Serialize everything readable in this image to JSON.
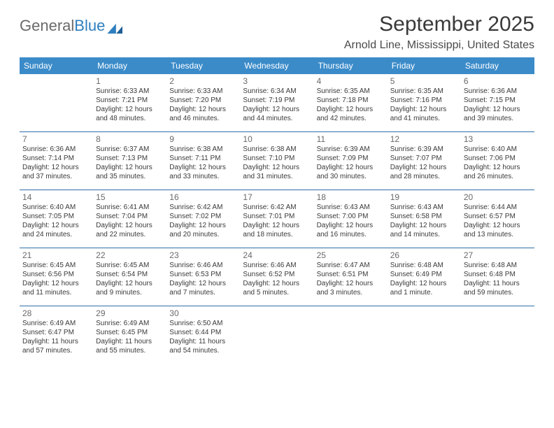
{
  "brand": {
    "part1": "General",
    "part2": "Blue"
  },
  "title": "September 2025",
  "location": "Arnold Line, Mississippi, United States",
  "colors": {
    "header_bg": "#3b8bc9",
    "header_text": "#ffffff",
    "row_divider": "#2f6fa8",
    "text": "#3a3a3a",
    "muted": "#6a6a6a",
    "logo_blue": "#2f7fbf",
    "page_bg": "#ffffff"
  },
  "typography": {
    "title_fontsize": 30,
    "location_fontsize": 16,
    "dow_fontsize": 12,
    "daynum_fontsize": 12,
    "body_fontsize": 10
  },
  "days_of_week": [
    "Sunday",
    "Monday",
    "Tuesday",
    "Wednesday",
    "Thursday",
    "Friday",
    "Saturday"
  ],
  "weeks": [
    [
      null,
      {
        "num": "1",
        "sunrise": "Sunrise: 6:33 AM",
        "sunset": "Sunset: 7:21 PM",
        "daylight1": "Daylight: 12 hours",
        "daylight2": "and 48 minutes."
      },
      {
        "num": "2",
        "sunrise": "Sunrise: 6:33 AM",
        "sunset": "Sunset: 7:20 PM",
        "daylight1": "Daylight: 12 hours",
        "daylight2": "and 46 minutes."
      },
      {
        "num": "3",
        "sunrise": "Sunrise: 6:34 AM",
        "sunset": "Sunset: 7:19 PM",
        "daylight1": "Daylight: 12 hours",
        "daylight2": "and 44 minutes."
      },
      {
        "num": "4",
        "sunrise": "Sunrise: 6:35 AM",
        "sunset": "Sunset: 7:18 PM",
        "daylight1": "Daylight: 12 hours",
        "daylight2": "and 42 minutes."
      },
      {
        "num": "5",
        "sunrise": "Sunrise: 6:35 AM",
        "sunset": "Sunset: 7:16 PM",
        "daylight1": "Daylight: 12 hours",
        "daylight2": "and 41 minutes."
      },
      {
        "num": "6",
        "sunrise": "Sunrise: 6:36 AM",
        "sunset": "Sunset: 7:15 PM",
        "daylight1": "Daylight: 12 hours",
        "daylight2": "and 39 minutes."
      }
    ],
    [
      {
        "num": "7",
        "sunrise": "Sunrise: 6:36 AM",
        "sunset": "Sunset: 7:14 PM",
        "daylight1": "Daylight: 12 hours",
        "daylight2": "and 37 minutes."
      },
      {
        "num": "8",
        "sunrise": "Sunrise: 6:37 AM",
        "sunset": "Sunset: 7:13 PM",
        "daylight1": "Daylight: 12 hours",
        "daylight2": "and 35 minutes."
      },
      {
        "num": "9",
        "sunrise": "Sunrise: 6:38 AM",
        "sunset": "Sunset: 7:11 PM",
        "daylight1": "Daylight: 12 hours",
        "daylight2": "and 33 minutes."
      },
      {
        "num": "10",
        "sunrise": "Sunrise: 6:38 AM",
        "sunset": "Sunset: 7:10 PM",
        "daylight1": "Daylight: 12 hours",
        "daylight2": "and 31 minutes."
      },
      {
        "num": "11",
        "sunrise": "Sunrise: 6:39 AM",
        "sunset": "Sunset: 7:09 PM",
        "daylight1": "Daylight: 12 hours",
        "daylight2": "and 30 minutes."
      },
      {
        "num": "12",
        "sunrise": "Sunrise: 6:39 AM",
        "sunset": "Sunset: 7:07 PM",
        "daylight1": "Daylight: 12 hours",
        "daylight2": "and 28 minutes."
      },
      {
        "num": "13",
        "sunrise": "Sunrise: 6:40 AM",
        "sunset": "Sunset: 7:06 PM",
        "daylight1": "Daylight: 12 hours",
        "daylight2": "and 26 minutes."
      }
    ],
    [
      {
        "num": "14",
        "sunrise": "Sunrise: 6:40 AM",
        "sunset": "Sunset: 7:05 PM",
        "daylight1": "Daylight: 12 hours",
        "daylight2": "and 24 minutes."
      },
      {
        "num": "15",
        "sunrise": "Sunrise: 6:41 AM",
        "sunset": "Sunset: 7:04 PM",
        "daylight1": "Daylight: 12 hours",
        "daylight2": "and 22 minutes."
      },
      {
        "num": "16",
        "sunrise": "Sunrise: 6:42 AM",
        "sunset": "Sunset: 7:02 PM",
        "daylight1": "Daylight: 12 hours",
        "daylight2": "and 20 minutes."
      },
      {
        "num": "17",
        "sunrise": "Sunrise: 6:42 AM",
        "sunset": "Sunset: 7:01 PM",
        "daylight1": "Daylight: 12 hours",
        "daylight2": "and 18 minutes."
      },
      {
        "num": "18",
        "sunrise": "Sunrise: 6:43 AM",
        "sunset": "Sunset: 7:00 PM",
        "daylight1": "Daylight: 12 hours",
        "daylight2": "and 16 minutes."
      },
      {
        "num": "19",
        "sunrise": "Sunrise: 6:43 AM",
        "sunset": "Sunset: 6:58 PM",
        "daylight1": "Daylight: 12 hours",
        "daylight2": "and 14 minutes."
      },
      {
        "num": "20",
        "sunrise": "Sunrise: 6:44 AM",
        "sunset": "Sunset: 6:57 PM",
        "daylight1": "Daylight: 12 hours",
        "daylight2": "and 13 minutes."
      }
    ],
    [
      {
        "num": "21",
        "sunrise": "Sunrise: 6:45 AM",
        "sunset": "Sunset: 6:56 PM",
        "daylight1": "Daylight: 12 hours",
        "daylight2": "and 11 minutes."
      },
      {
        "num": "22",
        "sunrise": "Sunrise: 6:45 AM",
        "sunset": "Sunset: 6:54 PM",
        "daylight1": "Daylight: 12 hours",
        "daylight2": "and 9 minutes."
      },
      {
        "num": "23",
        "sunrise": "Sunrise: 6:46 AM",
        "sunset": "Sunset: 6:53 PM",
        "daylight1": "Daylight: 12 hours",
        "daylight2": "and 7 minutes."
      },
      {
        "num": "24",
        "sunrise": "Sunrise: 6:46 AM",
        "sunset": "Sunset: 6:52 PM",
        "daylight1": "Daylight: 12 hours",
        "daylight2": "and 5 minutes."
      },
      {
        "num": "25",
        "sunrise": "Sunrise: 6:47 AM",
        "sunset": "Sunset: 6:51 PM",
        "daylight1": "Daylight: 12 hours",
        "daylight2": "and 3 minutes."
      },
      {
        "num": "26",
        "sunrise": "Sunrise: 6:48 AM",
        "sunset": "Sunset: 6:49 PM",
        "daylight1": "Daylight: 12 hours",
        "daylight2": "and 1 minute."
      },
      {
        "num": "27",
        "sunrise": "Sunrise: 6:48 AM",
        "sunset": "Sunset: 6:48 PM",
        "daylight1": "Daylight: 11 hours",
        "daylight2": "and 59 minutes."
      }
    ],
    [
      {
        "num": "28",
        "sunrise": "Sunrise: 6:49 AM",
        "sunset": "Sunset: 6:47 PM",
        "daylight1": "Daylight: 11 hours",
        "daylight2": "and 57 minutes."
      },
      {
        "num": "29",
        "sunrise": "Sunrise: 6:49 AM",
        "sunset": "Sunset: 6:45 PM",
        "daylight1": "Daylight: 11 hours",
        "daylight2": "and 55 minutes."
      },
      {
        "num": "30",
        "sunrise": "Sunrise: 6:50 AM",
        "sunset": "Sunset: 6:44 PM",
        "daylight1": "Daylight: 11 hours",
        "daylight2": "and 54 minutes."
      },
      null,
      null,
      null,
      null
    ]
  ]
}
